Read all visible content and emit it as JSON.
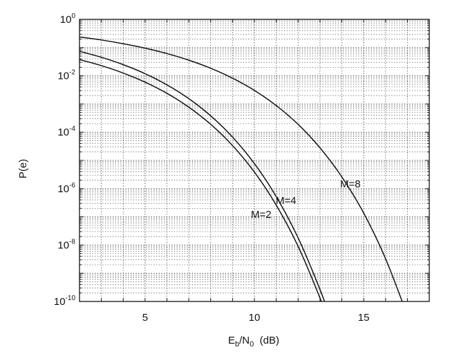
{
  "chart_data": {
    "type": "line",
    "title": "",
    "xlabel_main": "E",
    "xlabel_sub1": "b",
    "xlabel_mid": "/N",
    "xlabel_sub2": "0",
    "xlabel_tail": "  (dB)",
    "ylabel": "P(e)",
    "xlim": [
      2,
      18
    ],
    "ylim": [
      1e-10,
      1
    ],
    "yscale": "log",
    "grid": true,
    "xticks": [
      5,
      10,
      15
    ],
    "yticks": [
      {
        "base": "10",
        "exp": "0",
        "value": 1
      },
      {
        "base": "10",
        "exp": "-2",
        "value": 0.01
      },
      {
        "base": "10",
        "exp": "-4",
        "value": 0.0001
      },
      {
        "base": "10",
        "exp": "-6",
        "value": 1e-06
      },
      {
        "base": "10",
        "exp": "-8",
        "value": 1e-08
      },
      {
        "base": "10",
        "exp": "-10",
        "value": 1e-10
      }
    ],
    "series": [
      {
        "name": "M=2",
        "x": [
          2,
          3,
          4,
          5,
          6,
          7,
          8,
          9,
          10,
          11,
          12,
          13,
          13.5
        ],
        "values": [
          0.0375,
          0.0229,
          0.0125,
          0.00595,
          0.00239,
          0.000773,
          0.000191,
          3.36e-05,
          3.87e-06,
          2.61e-07,
          9e-09,
          1.33e-10,
          1.1e-11
        ]
      },
      {
        "name": "M=4",
        "x": [
          2,
          3,
          4,
          5,
          6,
          7,
          8,
          9,
          10,
          11,
          12,
          13,
          13.5
        ],
        "values": [
          0.0736,
          0.0453,
          0.0248,
          0.0119,
          0.00477,
          0.00155,
          0.000382,
          6.72e-05,
          7.74e-06,
          5.22e-07,
          1.8e-08,
          2.66e-10,
          2.2e-11
        ]
      },
      {
        "name": "M=8",
        "x": [
          2,
          3,
          4,
          5,
          6,
          7,
          8,
          9,
          10,
          11,
          12,
          13,
          14,
          15,
          16,
          17
        ],
        "values": [
          0.238,
          0.186,
          0.137,
          0.0956,
          0.0614,
          0.0358,
          0.0185,
          0.00824,
          0.00304,
          0.00088,
          0.00019,
          2.8e-05,
          2.6e-06,
          1.36e-07,
          3.3e-09,
          3.2e-11
        ]
      }
    ],
    "annotations": [
      {
        "text": "M=2",
        "series": "M=2"
      },
      {
        "text": "M=4",
        "series": "M=4"
      },
      {
        "text": "M=8",
        "series": "M=8"
      }
    ]
  }
}
